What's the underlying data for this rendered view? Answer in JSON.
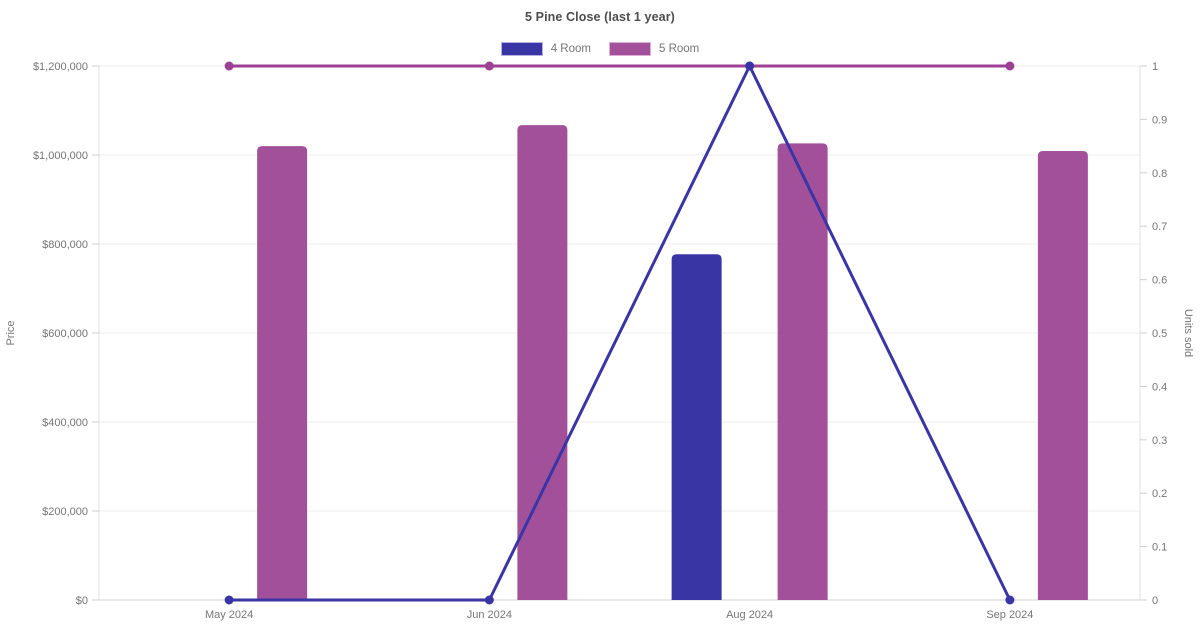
{
  "header": {
    "title": "5 Pine Close (last 1 year)"
  },
  "chart_data": {
    "type": "bar+line",
    "title": "5 Pine Close (last 1 year)",
    "categories": [
      "May 2024",
      "Jun 2024",
      "Aug 2024",
      "Sep 2024"
    ],
    "bar_series": [
      {
        "name": "4 Room",
        "color": "#3a35a5",
        "border_color": "#b4b1e4",
        "yaxis": "left",
        "values": [
          null,
          null,
          777000,
          null
        ]
      },
      {
        "name": "5 Room",
        "color": "#a3509b",
        "border_color": "#d9afd4",
        "yaxis": "left",
        "values": [
          1020000,
          1067000,
          1026000,
          1009000
        ]
      }
    ],
    "line_series": [
      {
        "name": "5 Room",
        "color": "#9c4094",
        "yaxis": "right",
        "values": [
          1,
          1,
          1,
          1
        ]
      },
      {
        "name": "4 Room",
        "color": "#3a35a5",
        "yaxis": "right",
        "values": [
          0,
          0,
          1,
          0
        ]
      }
    ],
    "left_axis": {
      "label": "Price",
      "min": 0,
      "max": 1200000,
      "tick_step": 200000,
      "tick_labels": [
        "$0",
        "$200,000",
        "$400,000",
        "$600,000",
        "$800,000",
        "$1,000,000",
        "$1,200,000"
      ]
    },
    "right_axis": {
      "label": "Units sold",
      "min": 0,
      "max": 1,
      "tick_step": 0.1,
      "tick_labels": [
        "0",
        "0.1",
        "0.2",
        "0.3",
        "0.4",
        "0.5",
        "0.6",
        "0.7",
        "0.8",
        "0.9",
        "1"
      ]
    },
    "legend_position": "top",
    "grid": "horizontal-left-axis-only"
  }
}
